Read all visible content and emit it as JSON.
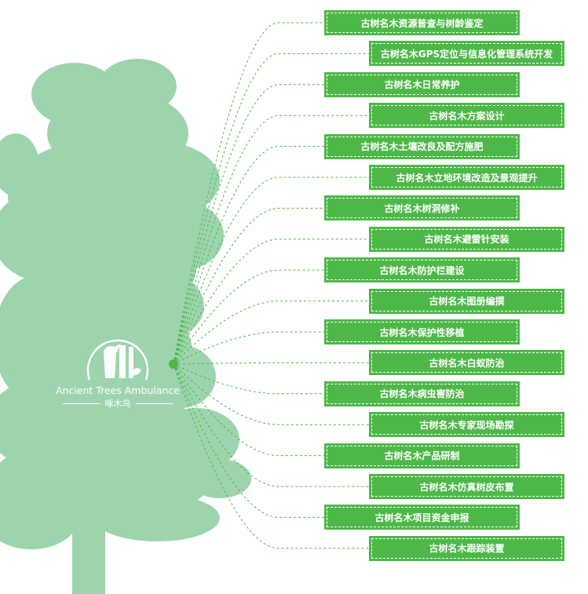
{
  "colors": {
    "tree": "#9dd4ae",
    "box": "#4db848",
    "line": "#4db848"
  },
  "logo": {
    "english": "Ancient Trees Ambulance",
    "chinese": "啄木鸟",
    "icon": "woodpecker-icon"
  },
  "services": [
    "古树名木资源普查与树龄鉴定",
    "古树名木GPS定位与信息化管理系统开发",
    "古树名木日常养护",
    "古树名木方案设计",
    "古树名木土壤改良及配方施肥",
    "古树名木立地环境改造及景观提升",
    "古树名木树洞修补",
    "古树名木避雷针安装",
    "古树名木防护栏建设",
    "古树名木图册编撰",
    "古树名木保护性移植",
    "古树名木白蚁防治",
    "古树名木病虫害防治",
    "古树名木专家现场勘探",
    "古树名木产品研制",
    "古树名木仿真树皮布置",
    "古树名木项目资金申报",
    "古树名木跟踪装置"
  ]
}
